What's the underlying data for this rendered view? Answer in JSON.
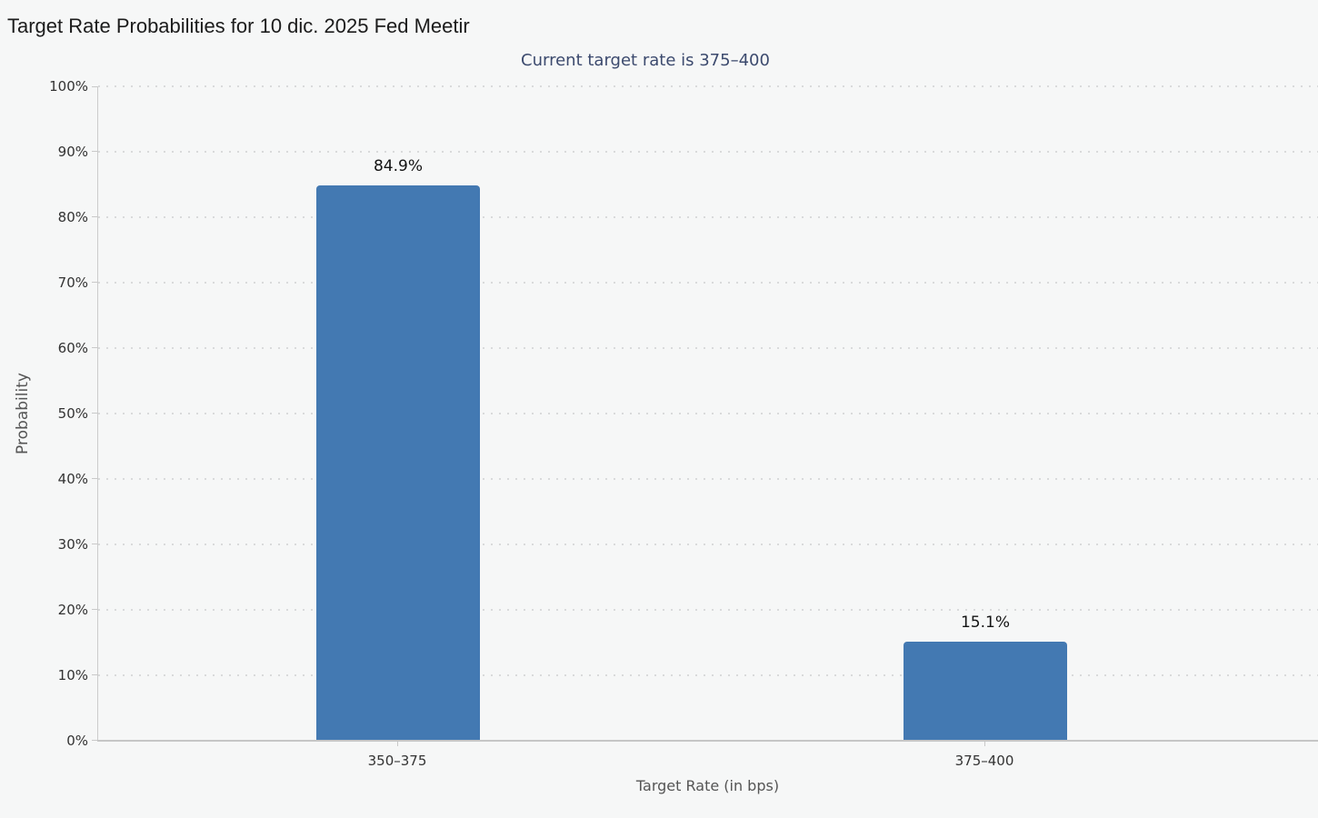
{
  "page": {
    "title": "Target Rate Probabilities for 10 dic. 2025 Fed Meetir",
    "subtitle": "Current target rate is 375–400"
  },
  "colors": {
    "background": "#f6f7f7",
    "bar": "#4379b2",
    "subtitle_text": "#3c4a6e",
    "title_text": "#1c1c1c",
    "tick_label": "#333333",
    "axis_title": "#555555",
    "value_label": "#141414",
    "axis_line": "#cccccc",
    "gridline": "#d9dadb"
  },
  "chart_data": {
    "type": "bar",
    "title": "Target Rate Probabilities for 10 dic. 2025 Fed Meetir",
    "subtitle": "Current target rate is 375–400",
    "categories": [
      "350–375",
      "375–400"
    ],
    "values": [
      84.9,
      15.1
    ],
    "value_labels": [
      "84.9%",
      "15.1%"
    ],
    "xlabel": "Target Rate (in bps)",
    "ylabel": "Probability",
    "ylim": [
      0,
      100
    ],
    "ytick_step": 10,
    "ytick_suffix": "%",
    "grid": "horizontal-dotted",
    "legend": "none"
  }
}
